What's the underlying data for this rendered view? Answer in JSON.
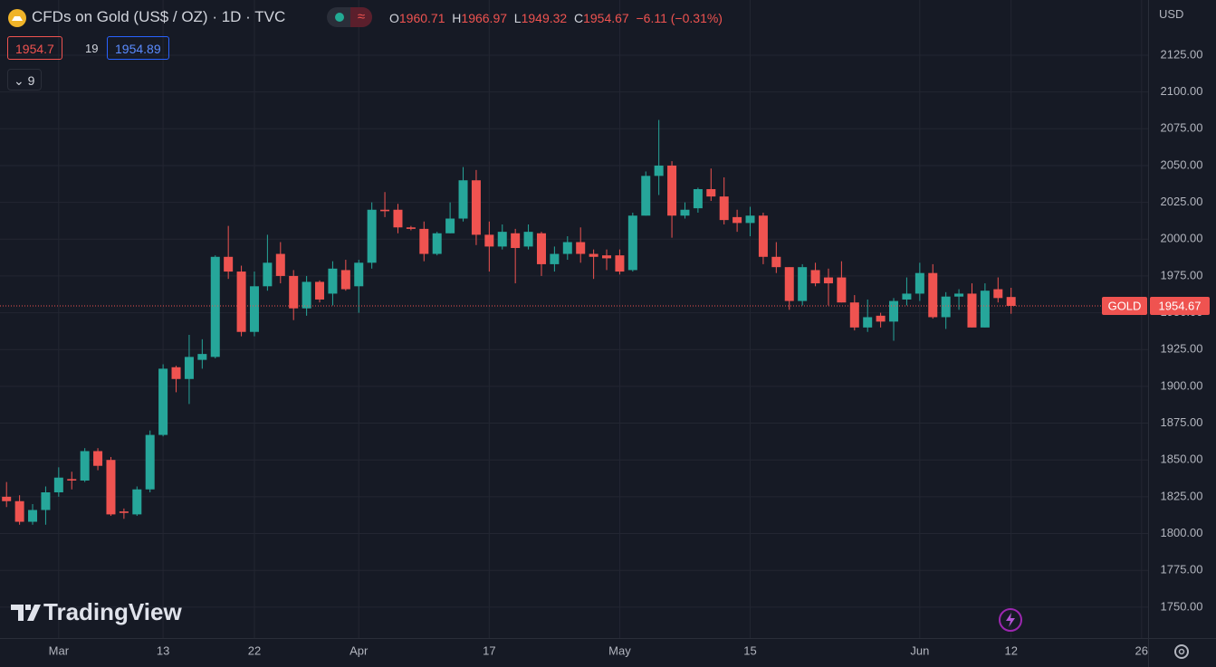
{
  "chart_data": {
    "type": "candlestick",
    "title": "CFDs on Gold (US$ / OZ) · 1D · TVC",
    "legend": {
      "o": "O",
      "open": 1960.71,
      "h": "H",
      "high": 1966.97,
      "l": "L",
      "low": 1949.32,
      "c": "C",
      "close": 1954.67,
      "change": "−6.11 (−0.31%)"
    },
    "bid": 1954.7,
    "spread": 19,
    "ask": 1954.89,
    "indicators": 9,
    "currency": "USD",
    "symbol": "GOLD",
    "last_price": 1954.67,
    "brand": "TradingView",
    "up_color": "#26a69a",
    "down_color": "#ef5350",
    "x": [
      0,
      1,
      2,
      3,
      4,
      5,
      6,
      7,
      8,
      9,
      10,
      11,
      12,
      13,
      14,
      15,
      16,
      17,
      18,
      19,
      20,
      21,
      22,
      23,
      24,
      25,
      26,
      27,
      28,
      29,
      30,
      31,
      32,
      33,
      34,
      35,
      36,
      37,
      38,
      39,
      40,
      41,
      42,
      43,
      44,
      45,
      46,
      47,
      48,
      49,
      50,
      51,
      52,
      53,
      54,
      55,
      56,
      57,
      58,
      59,
      60,
      61,
      62,
      63,
      64,
      65,
      66,
      67,
      68,
      69,
      70,
      71,
      72,
      73,
      74,
      75,
      76,
      77
    ],
    "open": [
      1825,
      1822,
      1808,
      1816,
      1828,
      1837,
      1836,
      1856,
      1850,
      1815,
      1813,
      1830,
      1867,
      1913,
      1905,
      1918,
      1920,
      1988,
      1978,
      1937,
      1968,
      1990,
      1975,
      1953,
      1971,
      1963,
      1979,
      1968,
      1984,
      2020,
      2020,
      2008,
      2007,
      1990,
      2004,
      2014,
      2040,
      2003,
      1995,
      2004,
      1995,
      2004,
      1983,
      1990,
      1998,
      1990,
      1989,
      1989,
      1979,
      2016,
      2043,
      2050,
      2016,
      2021,
      2034,
      2029,
      2015,
      2011,
      2016,
      1988,
      1981,
      1958,
      1979,
      1974,
      1974,
      1957,
      1940,
      1948,
      1944,
      1959,
      1963,
      1977,
      1947,
      1961,
      1963,
      1940,
      1966,
      1960.71
    ],
    "high": [
      1835,
      1826,
      1820,
      1832,
      1845,
      1842,
      1858,
      1858,
      1852,
      1817,
      1832,
      1870,
      1915,
      1914,
      1935,
      1932,
      1989,
      2009,
      1982,
      1978,
      2003,
      1998,
      1979,
      1975,
      1972,
      1985,
      1986,
      1986,
      2025,
      2032,
      2024,
      2009,
      2012,
      2005,
      2025,
      2049,
      2047,
      2012,
      2010,
      2007,
      2010,
      2005,
      1995,
      2002,
      2008,
      1993,
      1993,
      1993,
      2018,
      2046,
      2081,
      2053,
      2025,
      2035,
      2048,
      2042,
      2020,
      2022,
      2018,
      1998,
      1981,
      1983,
      1984,
      1980,
      1985,
      1962,
      1959,
      1950,
      1960,
      1974,
      1984,
      1983,
      1964,
      1966,
      1970,
      1970,
      1974,
      1966.97
    ],
    "low": [
      1818,
      1806,
      1806,
      1806,
      1825,
      1830,
      1835,
      1843,
      1812,
      1810,
      1812,
      1828,
      1866,
      1896,
      1888,
      1912,
      1919,
      1973,
      1934,
      1934,
      1965,
      1970,
      1945,
      1948,
      1957,
      1955,
      1965,
      1950,
      1980,
      2015,
      2004,
      2006,
      1985,
      1989,
      2004,
      2012,
      1996,
      1978,
      1993,
      1970,
      1993,
      1975,
      1978,
      1986,
      1984,
      1973,
      1979,
      1976,
      1978,
      2016,
      2030,
      2001,
      2014,
      2018,
      2026,
      2010,
      2005,
      2002,
      1983,
      1977,
      1952,
      1955,
      1968,
      1955,
      1957,
      1938,
      1937,
      1940,
      1931,
      1955,
      1958,
      1946,
      1939,
      1952,
      1940,
      1940,
      1957,
      1949.32
    ],
    "close": [
      1822,
      1808,
      1816,
      1828,
      1838,
      1836,
      1856,
      1846,
      1813,
      1814,
      1830,
      1867,
      1912,
      1905,
      1920,
      1922,
      1988,
      1978,
      1937,
      1968,
      1984,
      1975,
      1953,
      1971,
      1959,
      1980,
      1966,
      1984,
      2020,
      2019,
      2008,
      2007,
      1990,
      2004,
      2014,
      2040,
      2003,
      1995,
      2005,
      1994,
      2005,
      1983,
      1990,
      1998,
      1990,
      1988,
      1987,
      1978,
      2016,
      2043,
      2050,
      2016,
      2020,
      2034,
      2029,
      2013,
      2011,
      2016,
      1988,
      1981,
      1958,
      1981,
      1970,
      1970,
      1957,
      1940,
      1947,
      1944,
      1958,
      1963,
      1977,
      1947,
      1961,
      1963,
      1940,
      1965,
      1960,
      1954.67
    ],
    "xlim": [
      -0.5,
      87.5
    ],
    "xticks": [
      {
        "value": 4,
        "label": "Mar"
      },
      {
        "value": 12,
        "label": "13"
      },
      {
        "value": 19,
        "label": "22"
      },
      {
        "value": 27,
        "label": "Apr"
      },
      {
        "value": 37,
        "label": "17"
      },
      {
        "value": 47,
        "label": "May"
      },
      {
        "value": 57,
        "label": "15"
      },
      {
        "value": 70,
        "label": "Jun"
      },
      {
        "value": 77,
        "label": "12"
      },
      {
        "value": 87,
        "label": "26"
      }
    ],
    "ylim": [
      1729,
      2162.5
    ],
    "yticks": [
      {
        "value": 1750,
        "label": "1750.00"
      },
      {
        "value": 1775,
        "label": "1775.00"
      },
      {
        "value": 1800,
        "label": "1800.00"
      },
      {
        "value": 1825,
        "label": "1825.00"
      },
      {
        "value": 1850,
        "label": "1850.00"
      },
      {
        "value": 1875,
        "label": "1875.00"
      },
      {
        "value": 1900,
        "label": "1900.00"
      },
      {
        "value": 1925,
        "label": "1925.00"
      },
      {
        "value": 1950,
        "label": "1950.00"
      },
      {
        "value": 1975,
        "label": "1975.00"
      },
      {
        "value": 2000,
        "label": "2000.00"
      },
      {
        "value": 2025,
        "label": "2025.00"
      },
      {
        "value": 2050,
        "label": "2050.00"
      },
      {
        "value": 2075,
        "label": "2075.00"
      },
      {
        "value": 2100,
        "label": "2100.00"
      },
      {
        "value": 2125,
        "label": "2125.00"
      }
    ],
    "grid": true
  }
}
